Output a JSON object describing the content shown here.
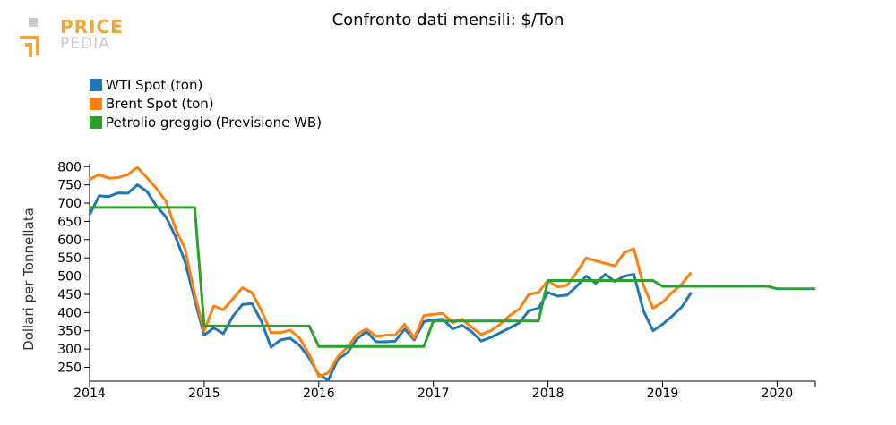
{
  "header": {
    "title": "Confronto dati mensili: $/Ton",
    "logo_word1": "PRICE",
    "logo_word2": "PEDIA"
  },
  "colors": {
    "wti": "#1f77b4",
    "brent": "#ff7f0e",
    "wb": "#2ca02c",
    "logo_orange": "#f0a43a",
    "logo_gray": "#c9c9c9"
  },
  "chart_data": {
    "type": "line",
    "title": "Confronto dati mensili: $/Ton",
    "xlabel": "",
    "ylabel": "Dollari per Tonnellata",
    "ylim": [
      212,
      808
    ],
    "xlim": [
      2014.0,
      2020.333
    ],
    "x_ticks": [
      2014,
      2015,
      2016,
      2017,
      2018,
      2019,
      2020
    ],
    "y_ticks": [
      250,
      300,
      350,
      400,
      450,
      500,
      550,
      600,
      650,
      700,
      750,
      800
    ],
    "legend_position": "top-left",
    "series": [
      {
        "name": "WTI Spot (ton)",
        "color": "#1f77b4",
        "x": [
          2014.0,
          2014.083,
          2014.167,
          2014.25,
          2014.333,
          2014.417,
          2014.5,
          2014.583,
          2014.667,
          2014.75,
          2014.833,
          2014.917,
          2015.0,
          2015.083,
          2015.167,
          2015.25,
          2015.333,
          2015.417,
          2015.5,
          2015.583,
          2015.667,
          2015.75,
          2015.833,
          2015.917,
          2016.0,
          2016.083,
          2016.167,
          2016.25,
          2016.333,
          2016.417,
          2016.5,
          2016.583,
          2016.667,
          2016.75,
          2016.833,
          2016.917,
          2017.0,
          2017.083,
          2017.167,
          2017.25,
          2017.333,
          2017.417,
          2017.5,
          2017.583,
          2017.667,
          2017.75,
          2017.833,
          2017.917,
          2018.0,
          2018.083,
          2018.167,
          2018.25,
          2018.333,
          2018.417,
          2018.5,
          2018.583,
          2018.667,
          2018.75,
          2018.833,
          2018.917,
          2019.0,
          2019.083,
          2019.167,
          2019.25
        ],
        "values": [
          668,
          720,
          718,
          728,
          727,
          750,
          732,
          692,
          662,
          608,
          540,
          435,
          338,
          358,
          342,
          390,
          422,
          425,
          375,
          305,
          325,
          330,
          310,
          275,
          230,
          215,
          272,
          290,
          328,
          348,
          320,
          320,
          322,
          355,
          325,
          375,
          380,
          382,
          355,
          365,
          348,
          322,
          332,
          345,
          358,
          372,
          405,
          412,
          455,
          445,
          448,
          472,
          500,
          480,
          505,
          485,
          500,
          505,
          405,
          350,
          368,
          390,
          415,
          455
        ]
      },
      {
        "name": "Brent Spot (ton)",
        "color": "#ff7f0e",
        "x": [
          2014.0,
          2014.083,
          2014.167,
          2014.25,
          2014.333,
          2014.417,
          2014.5,
          2014.583,
          2014.667,
          2014.75,
          2014.833,
          2014.917,
          2015.0,
          2015.083,
          2015.167,
          2015.25,
          2015.333,
          2015.417,
          2015.5,
          2015.583,
          2015.667,
          2015.75,
          2015.833,
          2015.917,
          2016.0,
          2016.083,
          2016.167,
          2016.25,
          2016.333,
          2016.417,
          2016.5,
          2016.583,
          2016.667,
          2016.75,
          2016.833,
          2016.917,
          2017.0,
          2017.083,
          2017.167,
          2017.25,
          2017.333,
          2017.417,
          2017.5,
          2017.583,
          2017.667,
          2017.75,
          2017.833,
          2017.917,
          2018.0,
          2018.083,
          2018.167,
          2018.25,
          2018.333,
          2018.417,
          2018.5,
          2018.583,
          2018.667,
          2018.75,
          2018.833,
          2018.917,
          2019.0,
          2019.083,
          2019.167,
          2019.25
        ],
        "values": [
          765,
          778,
          768,
          770,
          778,
          798,
          770,
          740,
          705,
          630,
          575,
          450,
          350,
          418,
          408,
          438,
          468,
          455,
          405,
          345,
          345,
          352,
          330,
          285,
          225,
          235,
          280,
          305,
          340,
          355,
          335,
          338,
          338,
          368,
          330,
          392,
          395,
          398,
          372,
          382,
          360,
          340,
          350,
          368,
          392,
          410,
          450,
          455,
          488,
          470,
          475,
          510,
          550,
          542,
          535,
          528,
          565,
          575,
          475,
          412,
          428,
          455,
          478,
          510
        ]
      },
      {
        "name": "Petrolio greggio (Previsione WB)",
        "color": "#2ca02c",
        "x": [
          2014.0,
          2014.917,
          2015.0,
          2015.917,
          2016.0,
          2016.917,
          2017.0,
          2017.917,
          2018.0,
          2018.917,
          2019.0,
          2019.917,
          2020.0,
          2020.333
        ],
        "values": [
          688,
          688,
          363,
          363,
          307,
          307,
          377,
          377,
          488,
          488,
          472,
          472,
          465,
          465
        ]
      }
    ]
  }
}
